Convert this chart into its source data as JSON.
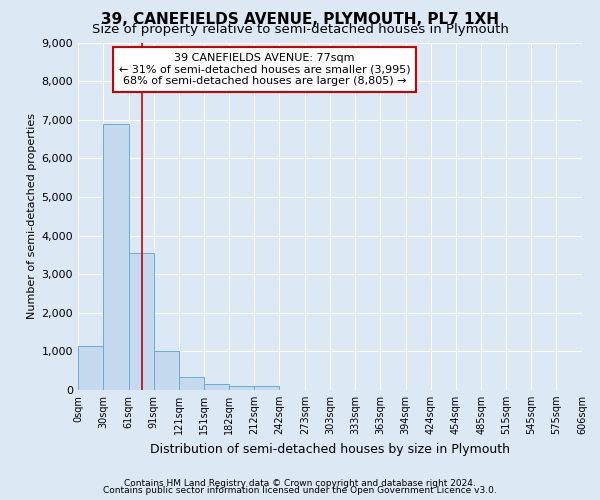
{
  "title": "39, CANEFIELDS AVENUE, PLYMOUTH, PL7 1XH",
  "subtitle": "Size of property relative to semi-detached houses in Plymouth",
  "xlabel": "Distribution of semi-detached houses by size in Plymouth",
  "ylabel": "Number of semi-detached properties",
  "bar_color": "#c5d9ef",
  "bar_edge_color": "#6aaad4",
  "vline_color": "#cc0000",
  "vline_x": 77,
  "annotation_line1": "39 CANEFIELDS AVENUE: 77sqm",
  "annotation_line2": "← 31% of semi-detached houses are smaller (3,995)",
  "annotation_line3": "68% of semi-detached houses are larger (8,805) →",
  "footnote1": "Contains HM Land Registry data © Crown copyright and database right 2024.",
  "footnote2": "Contains public sector information licensed under the Open Government Licence v3.0.",
  "bin_edges": [
    0,
    30,
    61,
    91,
    121,
    151,
    182,
    212,
    242,
    273,
    303,
    333,
    363,
    394,
    424,
    454,
    485,
    515,
    545,
    575,
    606
  ],
  "bar_heights": [
    1130,
    6890,
    3560,
    1000,
    330,
    150,
    110,
    100,
    0,
    0,
    0,
    0,
    0,
    0,
    0,
    0,
    0,
    0,
    0,
    0
  ],
  "ylim": [
    0,
    9000
  ],
  "yticks": [
    0,
    1000,
    2000,
    3000,
    4000,
    5000,
    6000,
    7000,
    8000,
    9000
  ],
  "background_color": "#dce9f5",
  "title_fontsize": 11,
  "subtitle_fontsize": 9.5,
  "xlabel_fontsize": 9,
  "ylabel_fontsize": 8,
  "annotation_box_color": "white",
  "annotation_box_edge": "#cc0000",
  "annotation_fontsize": 8,
  "footnote_fontsize": 6.5
}
